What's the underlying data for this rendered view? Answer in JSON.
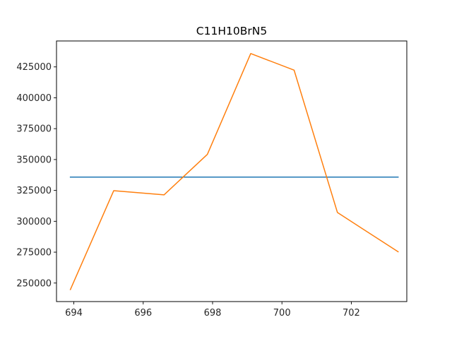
{
  "chart_data": {
    "type": "line",
    "title": "C11H10BrN5",
    "xlabel": "",
    "ylabel": "",
    "xlim": [
      693.5,
      703.6
    ],
    "ylim": [
      235000,
      446000
    ],
    "xticks": [
      694,
      696,
      698,
      700,
      702
    ],
    "yticks": [
      250000,
      275000,
      300000,
      325000,
      350000,
      375000,
      400000,
      425000
    ],
    "grid": false,
    "series": [
      {
        "color": "#1f77b4",
        "x": [
          693.9,
          703.35
        ],
        "y": [
          335800,
          335800
        ]
      },
      {
        "color": "#ff7f0e",
        "x": [
          693.9,
          695.15,
          696.6,
          697.85,
          699.1,
          700.35,
          701.6,
          703.35
        ],
        "y": [
          244700,
          324800,
          321400,
          354200,
          435800,
          422400,
          307100,
          275300
        ]
      }
    ]
  }
}
